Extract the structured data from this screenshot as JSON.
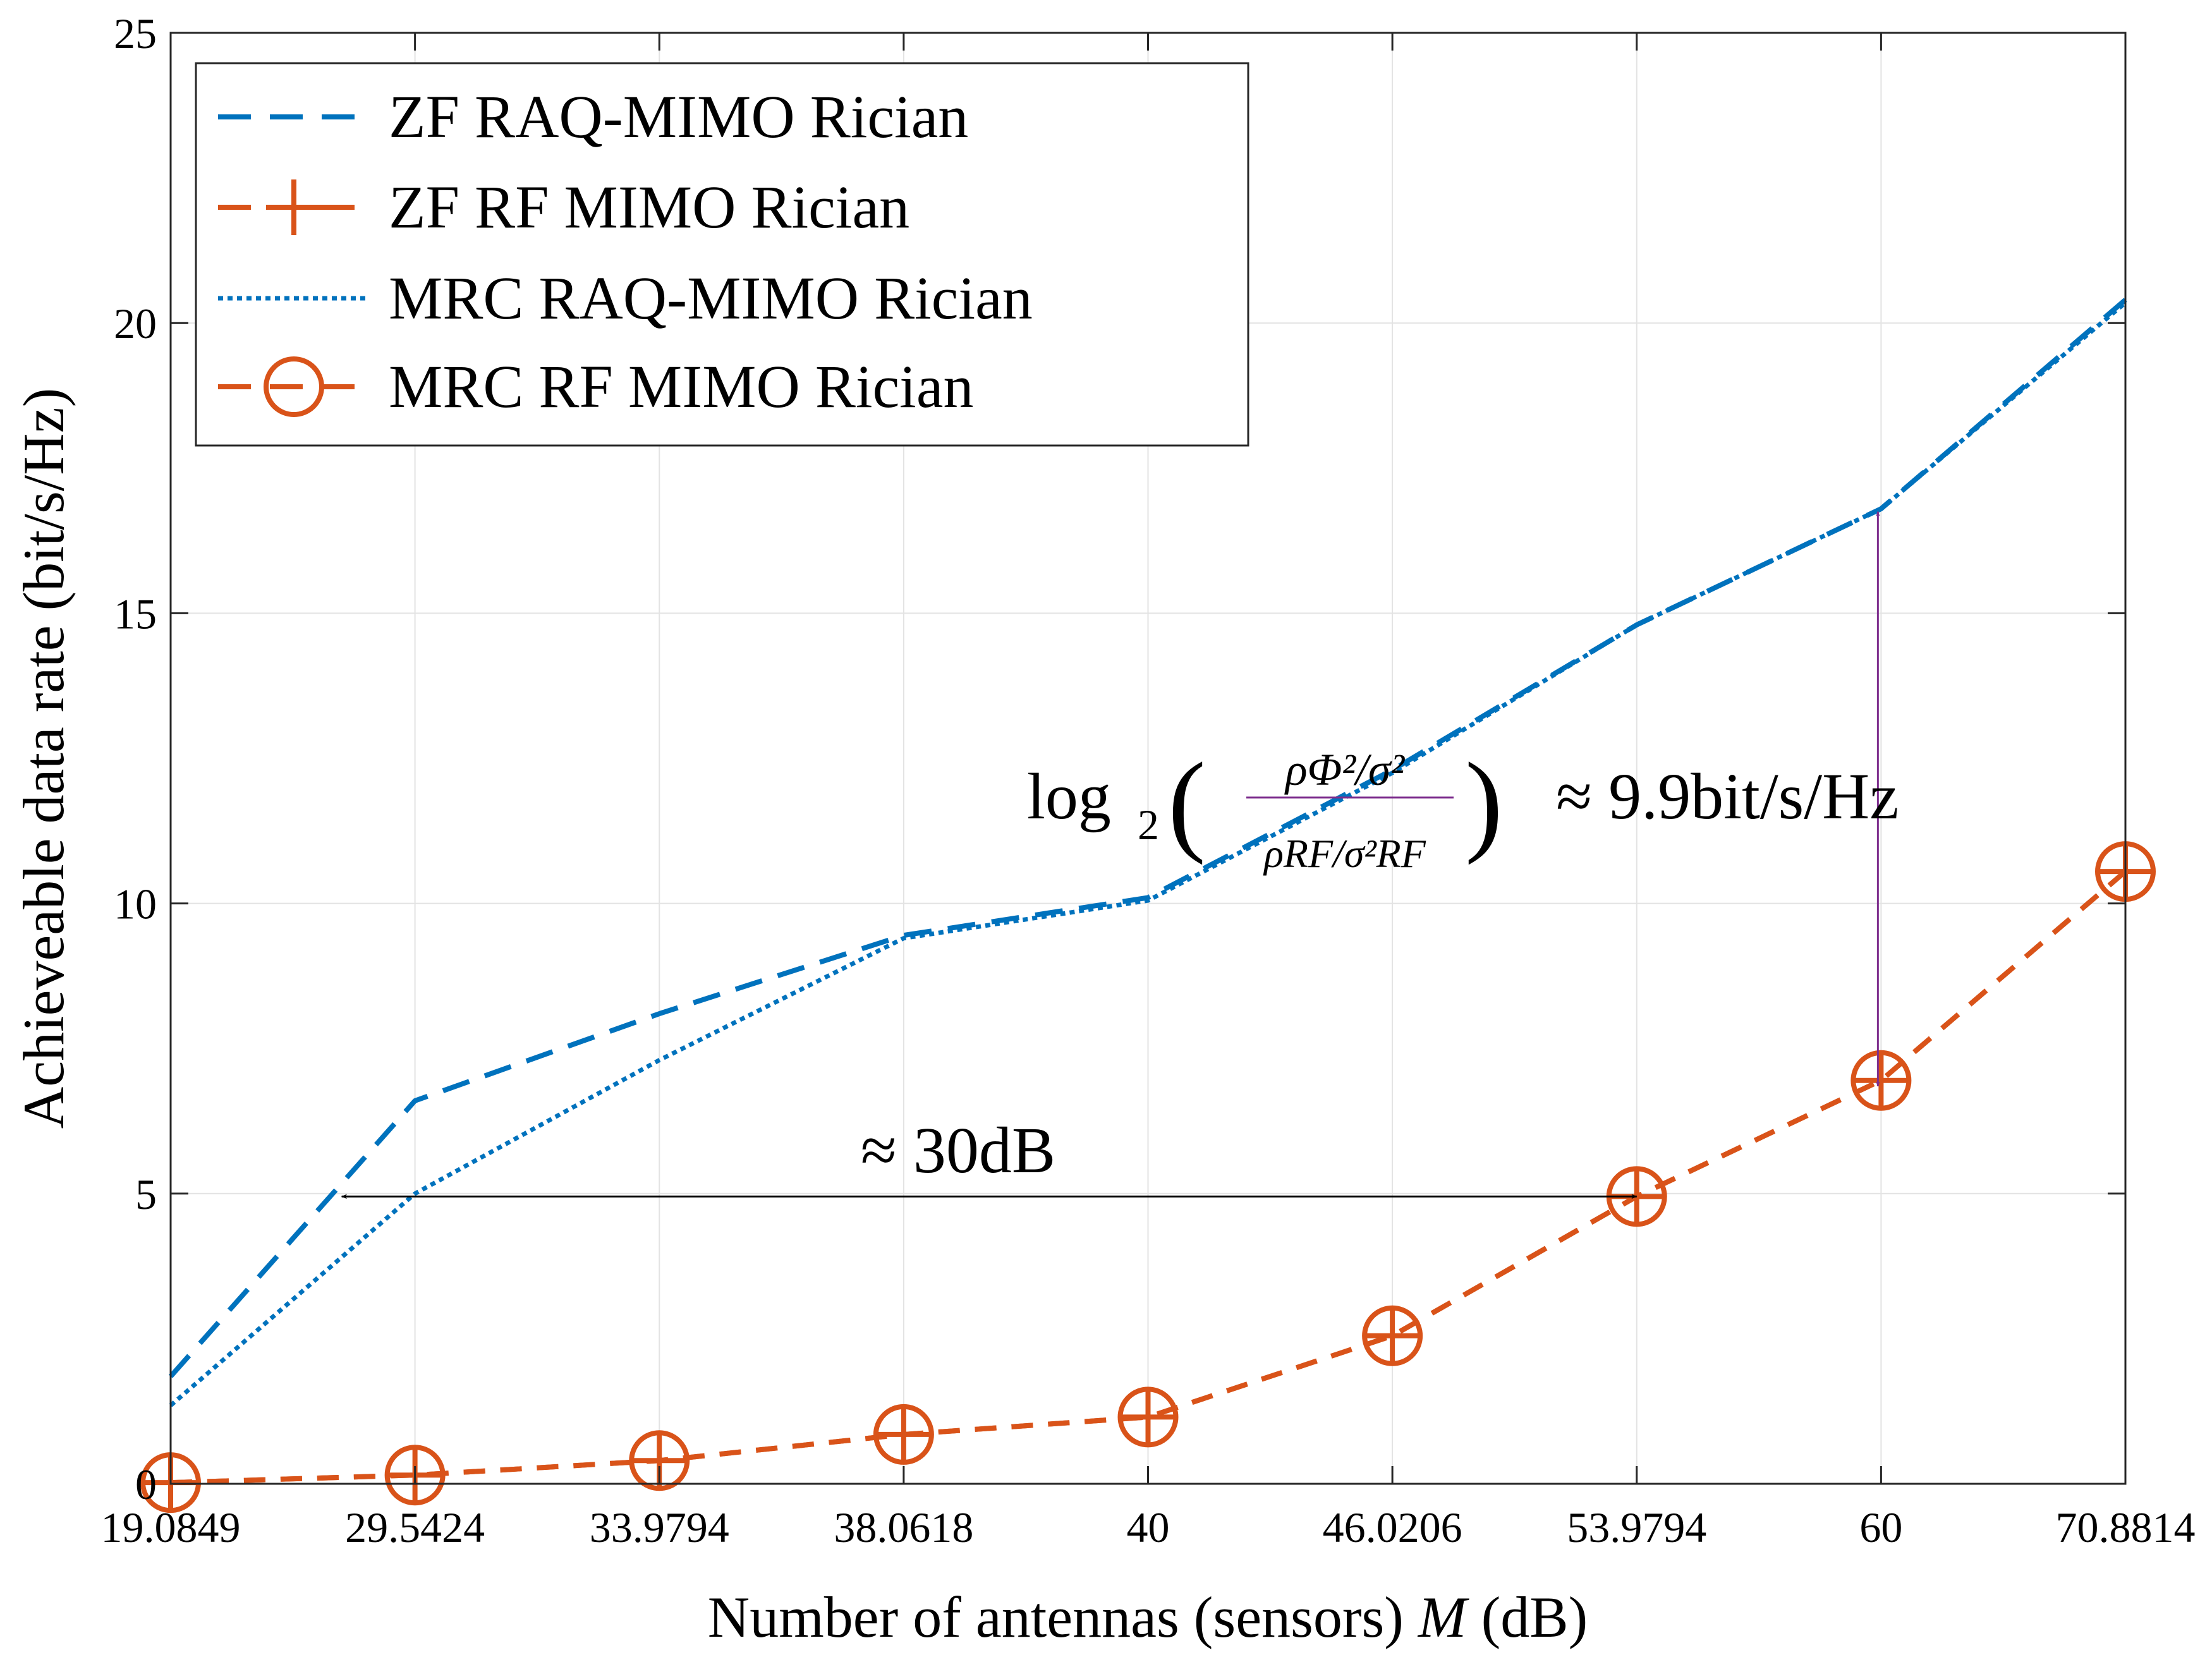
{
  "chart_data": {
    "type": "line",
    "title": "",
    "xlabel": "Number of antennas (sensors) M (dB)",
    "xlabel_parts": [
      "Number of antennas (sensors) ",
      "M",
      " (dB)"
    ],
    "ylabel": "Achieveable data rate (bit/s/Hz)",
    "categories": [
      "19.0849",
      "29.5424",
      "33.9794",
      "38.0618",
      "40",
      "46.0206",
      "53.9794",
      "60",
      "70.8814"
    ],
    "ylim": [
      0,
      25
    ],
    "yticks": [
      "0",
      "5",
      "10",
      "15",
      "20",
      "25"
    ],
    "grid": true,
    "legend_position": "top-left",
    "series": [
      {
        "name": "ZF RAQ-MIMO Rician",
        "style": "dashed",
        "marker": "none",
        "color": "#0072BD",
        "values": [
          1.85,
          6.6,
          8.1,
          9.45,
          10.1,
          12.3,
          14.8,
          16.8,
          20.4
        ]
      },
      {
        "name": "ZF RF MIMO Rician",
        "style": "dashed",
        "marker": "plus",
        "color": "#D95319",
        "values": [
          0.02,
          0.15,
          0.4,
          0.85,
          1.15,
          2.55,
          4.95,
          6.95,
          10.55
        ]
      },
      {
        "name": "MRC RAQ-MIMO Rician",
        "style": "dotted",
        "marker": "none",
        "color": "#0072BD",
        "values": [
          1.35,
          5.0,
          7.3,
          9.4,
          10.05,
          12.25,
          14.8,
          16.8,
          20.35
        ]
      },
      {
        "name": "MRC RF MIMO Rician",
        "style": "dashed",
        "marker": "circle",
        "color": "#D95319",
        "values": [
          0.02,
          0.15,
          0.4,
          0.85,
          1.15,
          2.55,
          4.95,
          6.95,
          10.55
        ]
      }
    ],
    "annotations": [
      {
        "id": "db-gap",
        "text": "≈ 30dB",
        "color": "#000000",
        "arrow": {
          "from_x": 0.7,
          "to_x": 6.0,
          "y": 4.95
        }
      },
      {
        "id": "rate-gap",
        "text_prefix": "log",
        "text_sub": "2",
        "fraction_num": "ρΦ²/σ²",
        "fraction_den": "ρRF/σ²RF",
        "text_suffix": "≈ 9.9bit/s/Hz",
        "color": "#7E2F8E",
        "arrow": {
          "x": 7.0,
          "from_y": 16.75,
          "to_y": 6.85
        }
      }
    ]
  }
}
